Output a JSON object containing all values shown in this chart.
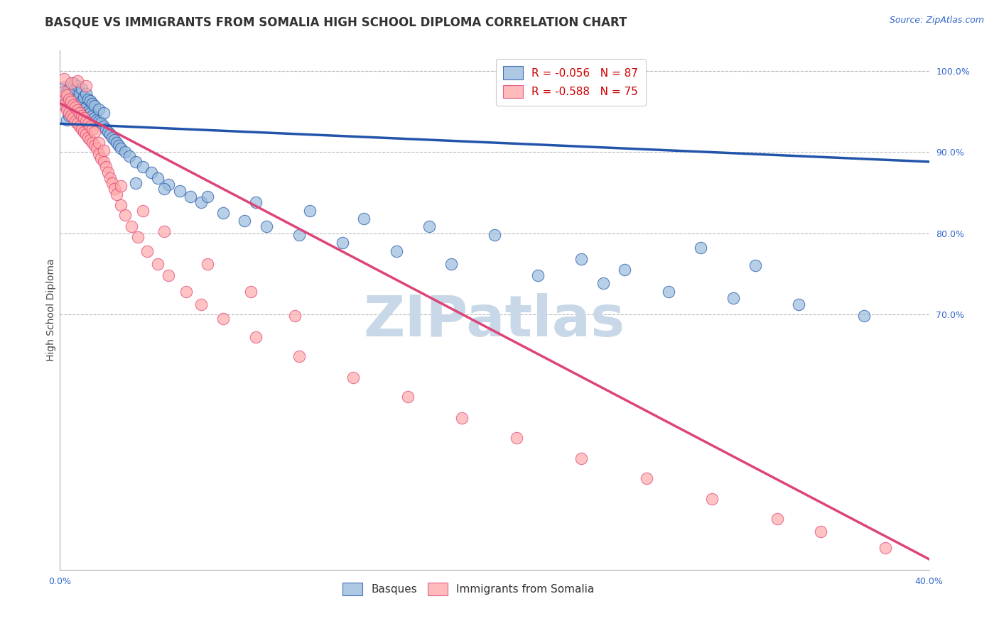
{
  "title": "BASQUE VS IMMIGRANTS FROM SOMALIA HIGH SCHOOL DIPLOMA CORRELATION CHART",
  "source": "Source: ZipAtlas.com",
  "ylabel": "High School Diploma",
  "watermark": "ZIPatlas",
  "legend_blue_label": "Basques",
  "legend_pink_label": "Immigrants from Somalia",
  "legend_blue_text": "R = -0.056   N = 87",
  "legend_pink_text": "R = -0.588   N = 75",
  "xlim": [
    0.0,
    0.4
  ],
  "ylim": [
    0.385,
    1.025
  ],
  "xticks": [
    0.0,
    0.05,
    0.1,
    0.15,
    0.2,
    0.25,
    0.3,
    0.35,
    0.4
  ],
  "xtick_labels": [
    "0.0%",
    "",
    "",
    "",
    "",
    "",
    "",
    "",
    "40.0%"
  ],
  "ytick_right_labels": [
    "100.0%",
    "90.0%",
    "80.0%",
    "70.0%"
  ],
  "ytick_right_values": [
    1.0,
    0.9,
    0.8,
    0.7
  ],
  "blue_scatter_x": [
    0.001,
    0.002,
    0.002,
    0.003,
    0.003,
    0.003,
    0.004,
    0.004,
    0.004,
    0.005,
    0.005,
    0.005,
    0.006,
    0.006,
    0.006,
    0.007,
    0.007,
    0.007,
    0.008,
    0.008,
    0.008,
    0.009,
    0.009,
    0.01,
    0.01,
    0.01,
    0.011,
    0.011,
    0.012,
    0.012,
    0.013,
    0.013,
    0.014,
    0.014,
    0.015,
    0.015,
    0.016,
    0.016,
    0.017,
    0.018,
    0.018,
    0.019,
    0.02,
    0.02,
    0.021,
    0.022,
    0.023,
    0.024,
    0.025,
    0.026,
    0.027,
    0.028,
    0.03,
    0.032,
    0.035,
    0.038,
    0.042,
    0.045,
    0.05,
    0.055,
    0.06,
    0.065,
    0.075,
    0.085,
    0.095,
    0.11,
    0.13,
    0.155,
    0.18,
    0.22,
    0.25,
    0.28,
    0.31,
    0.34,
    0.295,
    0.32,
    0.37,
    0.24,
    0.26,
    0.2,
    0.17,
    0.14,
    0.115,
    0.09,
    0.068,
    0.048,
    0.035
  ],
  "blue_scatter_y": [
    0.97,
    0.96,
    0.98,
    0.94,
    0.958,
    0.975,
    0.945,
    0.962,
    0.978,
    0.95,
    0.965,
    0.98,
    0.955,
    0.968,
    0.985,
    0.948,
    0.963,
    0.978,
    0.952,
    0.967,
    0.982,
    0.957,
    0.972,
    0.948,
    0.963,
    0.978,
    0.953,
    0.968,
    0.955,
    0.972,
    0.95,
    0.965,
    0.948,
    0.963,
    0.945,
    0.96,
    0.942,
    0.957,
    0.94,
    0.938,
    0.953,
    0.936,
    0.932,
    0.948,
    0.928,
    0.925,
    0.922,
    0.918,
    0.915,
    0.912,
    0.908,
    0.905,
    0.9,
    0.895,
    0.888,
    0.882,
    0.875,
    0.868,
    0.86,
    0.852,
    0.845,
    0.838,
    0.825,
    0.815,
    0.808,
    0.798,
    0.788,
    0.778,
    0.762,
    0.748,
    0.738,
    0.728,
    0.72,
    0.712,
    0.782,
    0.76,
    0.698,
    0.768,
    0.755,
    0.798,
    0.808,
    0.818,
    0.828,
    0.838,
    0.845,
    0.855,
    0.862
  ],
  "pink_scatter_x": [
    0.001,
    0.002,
    0.002,
    0.003,
    0.003,
    0.004,
    0.004,
    0.005,
    0.005,
    0.006,
    0.006,
    0.007,
    0.007,
    0.008,
    0.008,
    0.009,
    0.009,
    0.01,
    0.01,
    0.011,
    0.011,
    0.012,
    0.012,
    0.013,
    0.013,
    0.014,
    0.014,
    0.015,
    0.015,
    0.016,
    0.016,
    0.017,
    0.018,
    0.018,
    0.019,
    0.02,
    0.02,
    0.021,
    0.022,
    0.023,
    0.024,
    0.025,
    0.026,
    0.028,
    0.03,
    0.033,
    0.036,
    0.04,
    0.045,
    0.05,
    0.058,
    0.065,
    0.075,
    0.09,
    0.11,
    0.135,
    0.16,
    0.185,
    0.21,
    0.24,
    0.27,
    0.3,
    0.33,
    0.35,
    0.38,
    0.028,
    0.038,
    0.048,
    0.068,
    0.088,
    0.108,
    0.002,
    0.005,
    0.008,
    0.012
  ],
  "pink_scatter_y": [
    0.968,
    0.958,
    0.975,
    0.952,
    0.97,
    0.948,
    0.965,
    0.945,
    0.962,
    0.942,
    0.958,
    0.938,
    0.955,
    0.935,
    0.952,
    0.932,
    0.948,
    0.928,
    0.945,
    0.925,
    0.942,
    0.922,
    0.938,
    0.918,
    0.935,
    0.915,
    0.932,
    0.912,
    0.928,
    0.908,
    0.925,
    0.905,
    0.898,
    0.912,
    0.892,
    0.888,
    0.902,
    0.882,
    0.875,
    0.868,
    0.862,
    0.855,
    0.848,
    0.835,
    0.822,
    0.808,
    0.795,
    0.778,
    0.762,
    0.748,
    0.728,
    0.712,
    0.695,
    0.672,
    0.648,
    0.622,
    0.598,
    0.572,
    0.548,
    0.522,
    0.498,
    0.472,
    0.448,
    0.432,
    0.412,
    0.858,
    0.828,
    0.802,
    0.762,
    0.728,
    0.698,
    0.99,
    0.985,
    0.988,
    0.982
  ],
  "blue_line_x": [
    0.0,
    0.4
  ],
  "blue_line_y": [
    0.935,
    0.888
  ],
  "pink_line_x": [
    0.0,
    0.4
  ],
  "pink_line_y": [
    0.96,
    0.398
  ],
  "blue_color": "#99BBDD",
  "pink_color": "#FFAAAA",
  "blue_line_color": "#2255AA",
  "pink_line_color": "#DD4477",
  "background_color": "#FFFFFF",
  "grid_color": "#BBBBBB",
  "title_fontsize": 12,
  "source_fontsize": 9,
  "axis_label_fontsize": 10,
  "tick_fontsize": 9,
  "legend_fontsize": 11,
  "watermark_color": "#C8D8E8",
  "watermark_fontsize": 58
}
